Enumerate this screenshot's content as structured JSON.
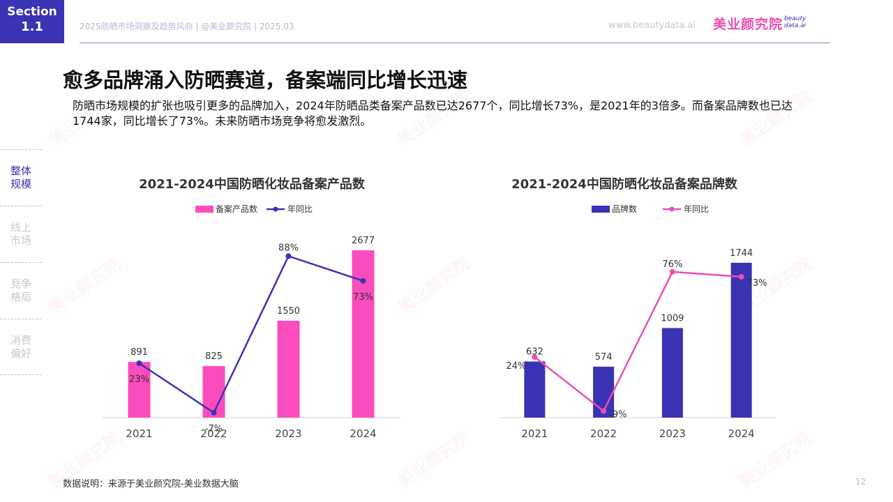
{
  "header": {
    "section_line1": "Section",
    "section_line2": "1.1",
    "meta": "2025防晒市场洞察及趋势风向 | @美业颜究院 | 2025.03",
    "url": "www.beautydata.ai",
    "brand": "美业颜究院",
    "brand_sub_top": "beauty",
    "brand_sub_bottom": "data.ai"
  },
  "title": "愈多品牌涌入防晒赛道，备案端同比增长迅速",
  "description": "防晒市场规模的扩张也吸引更多的品牌加入，2024年防晒品类备案产品数已达2677个，同比增长73%，是2021年的3倍多。而备案品牌数也已达1744家，同比增长了73%。未来防晒市场竞争将愈发激烈。",
  "nav": [
    {
      "label": "整体规模",
      "active": true
    },
    {
      "label": "线上市场",
      "active": false
    },
    {
      "label": "竞争格局",
      "active": false
    },
    {
      "label": "消费偏好",
      "active": false
    }
  ],
  "chart_data": [
    {
      "type": "bar",
      "title": "2021-2024中国防晒化妆品备案产品数",
      "categories": [
        "2021",
        "2022",
        "2023",
        "2024"
      ],
      "series": [
        {
          "name": "备案产品数",
          "kind": "bar",
          "values": [
            891,
            825,
            1550,
            2677
          ],
          "labels": [
            "891",
            "825",
            "1550",
            "2677"
          ],
          "color": "#fa4cbd"
        },
        {
          "name": "年同比",
          "kind": "line",
          "values": [
            23,
            -7,
            88,
            73
          ],
          "labels": [
            "23%",
            "-7%",
            "88%",
            "73%"
          ],
          "color": "#3a33b4"
        }
      ],
      "bar_max": 2900,
      "line_range": [
        -10,
        100
      ],
      "legend": "top"
    },
    {
      "type": "bar",
      "title": "2021-2024中国防晒化妆品备案品牌数",
      "categories": [
        "2021",
        "2022",
        "2023",
        "2024"
      ],
      "series": [
        {
          "name": "品牌数",
          "kind": "bar",
          "values": [
            632,
            574,
            1009,
            1744
          ],
          "labels": [
            "632",
            "574",
            "1009",
            "1744"
          ],
          "color": "#3a33b4"
        },
        {
          "name": "年同比",
          "kind": "line",
          "values": [
            24,
            -9,
            76,
            73
          ],
          "labels": [
            "24%",
            "-9%",
            "76%",
            "73%"
          ],
          "color": "#ea4fb3"
        }
      ],
      "bar_max": 1900,
      "line_range": [
        -13,
        90
      ],
      "legend": "top"
    }
  ],
  "source": "数据说明：来源于美业颜究院-美业数据大脑",
  "page_number": "12",
  "watermark_text": "美业颜究院"
}
